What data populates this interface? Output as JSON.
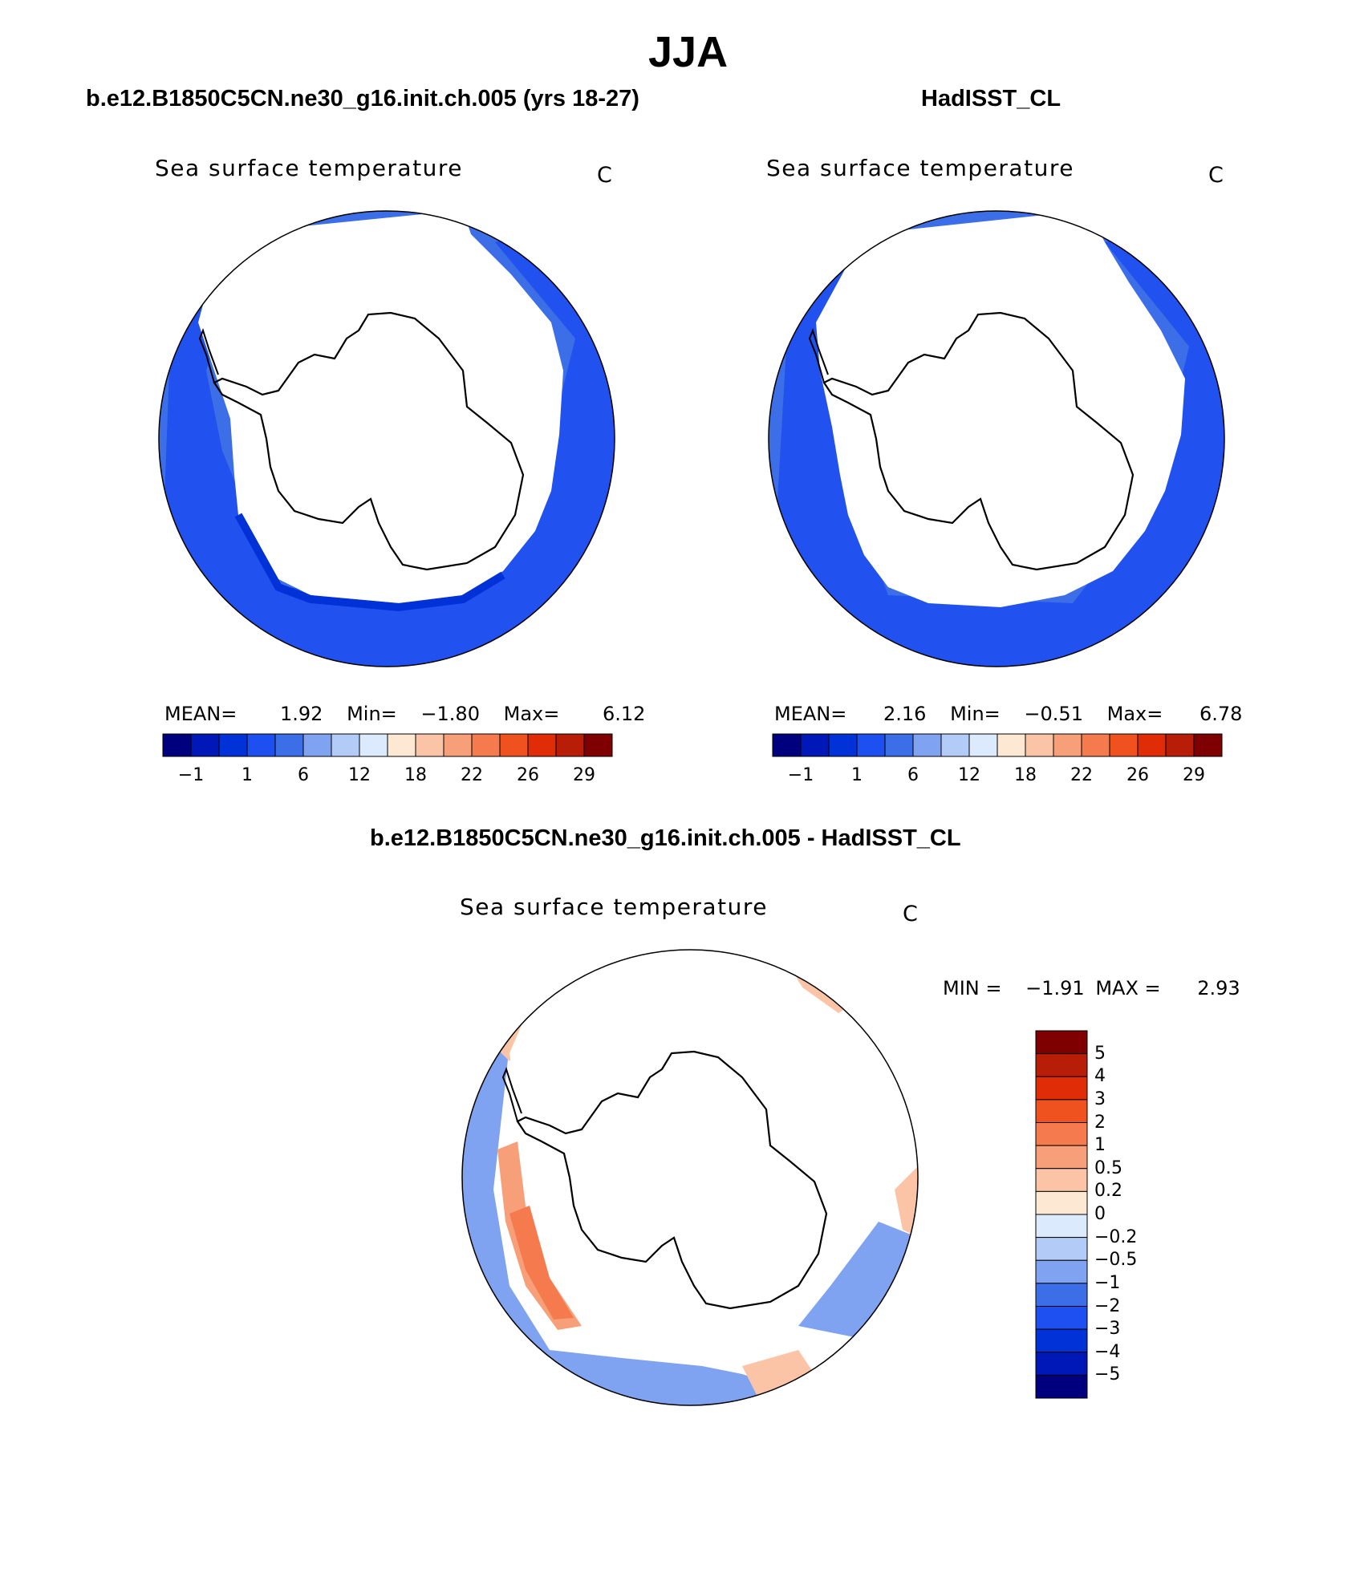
{
  "figure": {
    "title": "JJA"
  },
  "panels": [
    {
      "title": "b.e12.B1850C5CN.ne30_g16.init.ch.005 (yrs 18-27)",
      "variable": "Sea surface temperature",
      "units": "C",
      "stats": {
        "mean_label": "MEAN=",
        "mean": "1.92",
        "min_label": "Min=",
        "min": "−1.80",
        "max_label": "Max=",
        "max": "6.12"
      },
      "colorbar": {
        "colors": [
          "#00007f",
          "#0018b8",
          "#0032d8",
          "#1e4ff0",
          "#3c6ee8",
          "#7fa3f0",
          "#b2cbf7",
          "#dbeafc",
          "#fde8d3",
          "#fbc4a7",
          "#f79f78",
          "#f57a4e",
          "#f0521f",
          "#e02d08",
          "#b81e07",
          "#7f0000"
        ],
        "labels": [
          "−1",
          "1",
          "6",
          "12",
          "18",
          "22",
          "26",
          "29"
        ]
      }
    },
    {
      "title": "HadISST_CL",
      "variable": "Sea surface temperature",
      "units": "C",
      "stats": {
        "mean_label": "MEAN=",
        "mean": "2.16",
        "min_label": "Min=",
        "min": "−0.51",
        "max_label": "Max=",
        "max": "6.78"
      },
      "colorbar": {
        "colors": [
          "#00007f",
          "#0018b8",
          "#0032d8",
          "#1e4ff0",
          "#3c6ee8",
          "#7fa3f0",
          "#b2cbf7",
          "#dbeafc",
          "#fde8d3",
          "#fbc4a7",
          "#f79f78",
          "#f57a4e",
          "#f0521f",
          "#e02d08",
          "#b81e07",
          "#7f0000"
        ],
        "labels": [
          "−1",
          "1",
          "6",
          "12",
          "18",
          "22",
          "26",
          "29"
        ]
      }
    },
    {
      "title": "b.e12.B1850C5CN.ne30_g16.init.ch.005 - HadISST_CL",
      "variable": "Sea surface temperature",
      "units": "C",
      "stats": {
        "min_label": "MIN =",
        "min": "−1.91",
        "max_label": "MAX =",
        "max": "2.93"
      },
      "colorbar": {
        "colors": [
          "#7f0000",
          "#b81e07",
          "#e02d08",
          "#f0521f",
          "#f57a4e",
          "#f79f78",
          "#fbc4a7",
          "#fde8d3",
          "#dbeafc",
          "#b2cbf7",
          "#7fa3f0",
          "#3c6ee8",
          "#1e4ff0",
          "#0032d8",
          "#0018b8",
          "#00007f"
        ],
        "labels": [
          "5",
          "4",
          "3",
          "2",
          "1",
          "0.5",
          "0.2",
          "0",
          "−0.2",
          "−0.5",
          "−1",
          "−2",
          "−3",
          "−4",
          "−5"
        ]
      }
    }
  ],
  "map_colors": {
    "deep_blue": "#0032d8",
    "mid_blue": "#1e4ff0",
    "light_blue": "#3c6ee8",
    "pale_blue": "#7fa3f0",
    "ice": "#ffffff",
    "anomaly_orange": "#f57a4e",
    "anomaly_salmon": "#f79f78",
    "anomaly_peach": "#fbc4a7"
  }
}
